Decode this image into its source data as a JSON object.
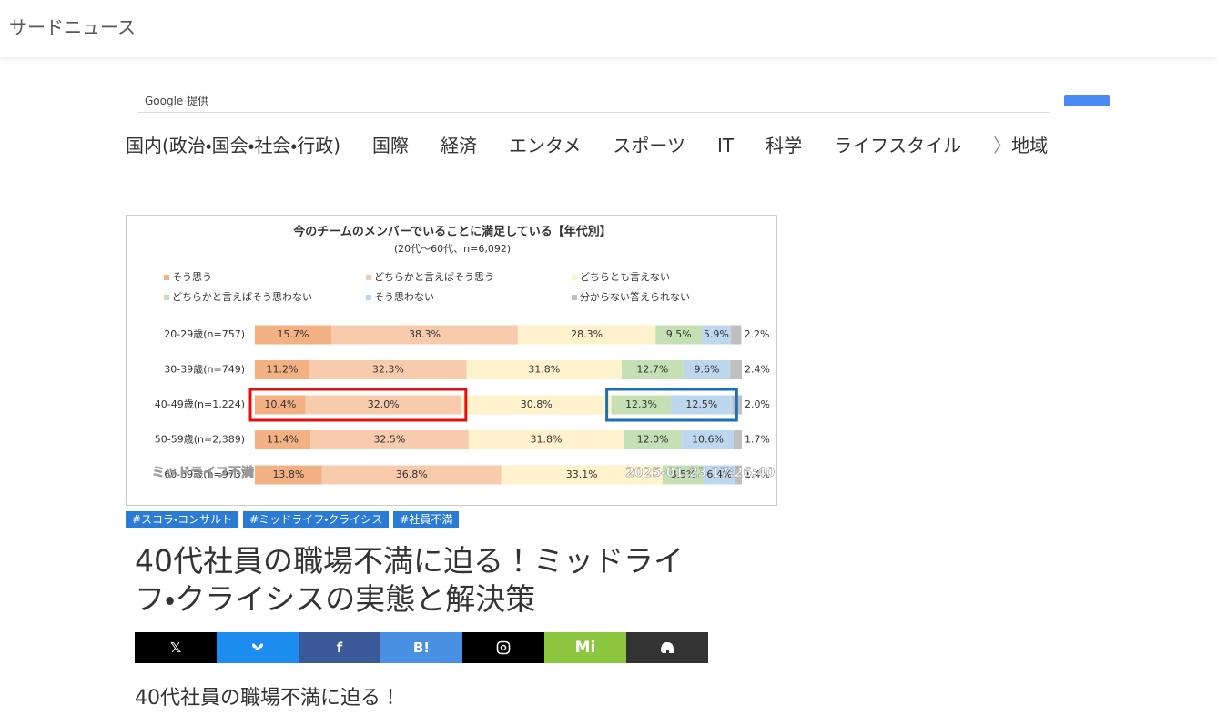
{
  "header": {
    "site_name": "サードニュース"
  },
  "search": {
    "provider": "Google 提供"
  },
  "nav": {
    "items": [
      "国内(政治・国会・社会・行政)",
      "国際",
      "経済",
      "エンタメ",
      "スポーツ",
      "IT",
      "科学",
      "ライフスタイル",
      "地域"
    ]
  },
  "chart_data": {
    "type": "stacked-bar-horizontal",
    "title": "今のチームのメンバーでいることに満足している【年代別】",
    "subtitle": "(20代～60代、n=6,092)",
    "categories": [
      "20-29歳(n=757)",
      "30-39歳(n=749)",
      "40-49歳(n=1,224)",
      "50-59歳(n=2,389)",
      "60-69歳(n=973)"
    ],
    "xlim": [
      0,
      100
    ],
    "series": [
      {
        "name": "そう思う",
        "color": "#f4b183",
        "values": [
          15.7,
          11.2,
          10.4,
          11.4,
          13.8
        ],
        "value_labels": [
          "15.7%",
          "11.2%",
          "10.4%",
          "11.4%",
          "13.8%"
        ]
      },
      {
        "name": "どちらかと言えばそう思う",
        "color": "#f8cbad",
        "values": [
          38.3,
          32.3,
          32.0,
          32.5,
          36.8
        ],
        "value_labels": [
          "38.3%",
          "32.3%",
          "32.0%",
          "32.5%",
          "36.8%"
        ]
      },
      {
        "name": "どちらとも言えない",
        "color": "#fff2cc",
        "values": [
          28.3,
          31.8,
          30.8,
          31.8,
          33.1
        ],
        "value_labels": [
          "28.3%",
          "31.8%",
          "30.8%",
          "31.8%",
          "33.1%"
        ]
      },
      {
        "name": "どちらかと言えばそう思わない",
        "color": "#c5e0b4",
        "values": [
          9.5,
          12.7,
          12.3,
          12.0,
          8.5
        ],
        "value_labels": [
          "9.5%",
          "12.7%",
          "12.3%",
          "12.0%",
          "8.5%"
        ]
      },
      {
        "name": "そう思わない",
        "color": "#bdd7ee",
        "values": [
          5.9,
          9.6,
          12.5,
          10.6,
          6.4
        ],
        "value_labels": [
          "5.9%",
          "9.6%",
          "12.5%",
          "10.6%",
          "6.4%"
        ]
      },
      {
        "name": "分からない答えられない",
        "color": "#bfbfbf",
        "values": [
          2.2,
          2.4,
          2.0,
          1.7,
          1.4
        ],
        "value_labels": [
          "2.2%",
          "2.4%",
          "2.0%",
          "1.7%",
          "1.4%"
        ]
      }
    ],
    "annotations": [
      "ミッドライフ不満",
      "2025-01-23 17:26:40"
    ]
  },
  "tags": [
    "#スコラ・コンサルト",
    "#ミッドライフ・クライシス",
    "#社員不満"
  ],
  "article": {
    "title": "40代社員の職場不満に迫る！ミッドライフ・クライシスの実態と解決策",
    "lead": "40代社員の職場不満に迫る！"
  },
  "share": {
    "x": "𝕏",
    "facebook": "f",
    "hatena": "B!",
    "misskey": "Mi"
  }
}
